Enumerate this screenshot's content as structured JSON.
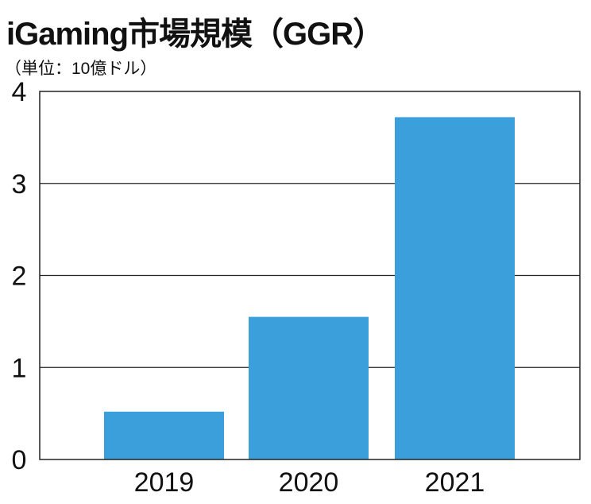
{
  "chart_data": {
    "type": "bar",
    "title": "iGaming市場規模（GGR）",
    "subtitle": "（単位：10億ドル）",
    "xlabel": "",
    "ylabel": "",
    "categories": [
      "2019",
      "2020",
      "2021"
    ],
    "values": [
      0.52,
      1.55,
      3.72
    ],
    "ylim": [
      0,
      4
    ],
    "yticks": [
      "0",
      "1",
      "2",
      "3",
      "4"
    ],
    "grid": true,
    "bar_color": "#3a9fdb"
  }
}
